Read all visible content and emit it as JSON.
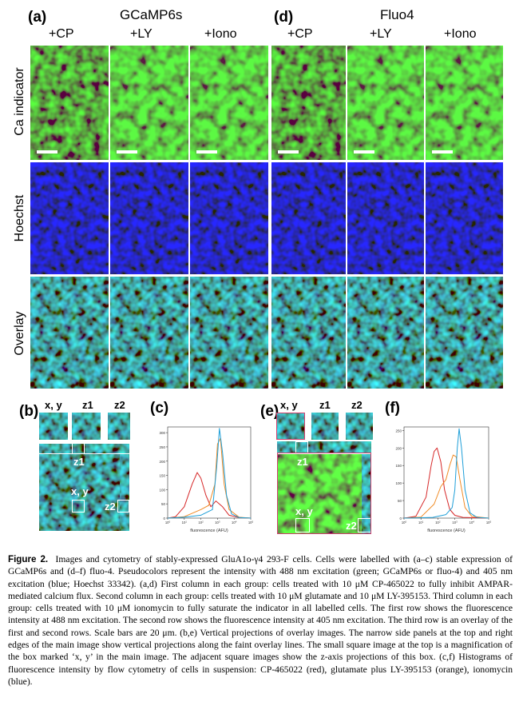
{
  "panels": {
    "a": {
      "letter": "(a)",
      "title": "GCaMP6s",
      "cols": [
        "+CP",
        "+LY",
        "+Iono"
      ]
    },
    "d": {
      "letter": "(d)",
      "title": "Fluo4",
      "cols": [
        "+CP",
        "+LY",
        "+Iono"
      ]
    },
    "rows": [
      "Ca indicator",
      "Hoechst",
      "Overlay"
    ],
    "b": {
      "letter": "(b)",
      "labels": [
        "x, y",
        "z1",
        "z2"
      ],
      "main_labels": [
        "z1",
        "x, y",
        "z2"
      ]
    },
    "c": {
      "letter": "(c)",
      "xlabel": "fluorescence (AFU)"
    },
    "e": {
      "letter": "(e)",
      "labels": [
        "x, y",
        "z1",
        "z2"
      ],
      "main_labels": [
        "z1",
        "x, y",
        "z2"
      ]
    },
    "f": {
      "letter": "(f)",
      "xlabel": "fluorescence (AFU)"
    }
  },
  "colors": {
    "red": "#d62728",
    "orange": "#f08a24",
    "blue": "#1f9fd8",
    "green": "#2fbf2f",
    "hoechst": "#1a2fd8"
  },
  "caption": {
    "heading": "Figure 2.",
    "text": "Images and cytometry of stably-expressed GluA1o-γ4 293-F cells. Cells were labelled with (a–c) stable expression of GCaMP6s and (d–f) fluo-4. Pseudocolors represent the intensity with 488 nm excitation (green; GCaMP6s or fluo-4) and 405 nm excitation (blue; Hoechst 33342). (a,d) First column in each group: cells treated with 10 μM CP-465022 to fully inhibit AMPAR-mediated calcium flux. Second column in each group: cells treated with 10 μM glutamate and 10 μM LY-395153. Third column in each group: cells treated with 10 μM ionomycin to fully saturate the indicator in all labelled cells. The first row shows the fluorescence intensity at 488 nm excitation. The second row shows the fluorescence intensity at 405 nm excitation. The third row is an overlay of the first and second rows. Scale bars are 20 μm. (b,e) Vertical projections of overlay images. The narrow side panels at the top and right edges of the main image show vertical projections along the faint overlay lines. The small square image at the top is a magnification of the box marked ‘x, y’ in the main image. The adjacent square images show the z-axis projections of this box. (c,f) Histograms of fluorescence intensity by flow cytometry of cells in suspension: CP-465022 (red), glutamate plus LY-395153 (orange), ionomycin (blue)."
  },
  "chart_data": [
    {
      "type": "line",
      "panel": "c",
      "xlabel": "fluorescence (AFU)",
      "xscale": "log",
      "xlim": [
        1,
        100000
      ],
      "ylim": [
        0,
        320
      ],
      "yticks": [
        0,
        50,
        100,
        150,
        200,
        250,
        300
      ],
      "series": [
        {
          "color": "red",
          "x": [
            1,
            3,
            10,
            30,
            60,
            100,
            200,
            400,
            800,
            2000,
            5000,
            20000,
            100000
          ],
          "y": [
            0,
            5,
            40,
            120,
            160,
            140,
            80,
            40,
            60,
            40,
            10,
            2,
            0
          ]
        },
        {
          "color": "orange",
          "x": [
            1,
            10,
            100,
            300,
            700,
            1000,
            1500,
            2500,
            5000,
            20000,
            100000
          ],
          "y": [
            0,
            5,
            30,
            45,
            120,
            260,
            280,
            120,
            30,
            3,
            0
          ]
        },
        {
          "color": "blue",
          "x": [
            1,
            10,
            100,
            500,
            900,
            1300,
            2000,
            3500,
            7000,
            20000,
            100000
          ],
          "y": [
            0,
            3,
            10,
            30,
            180,
            315,
            230,
            80,
            15,
            2,
            0
          ]
        }
      ]
    },
    {
      "type": "line",
      "panel": "f",
      "xlabel": "fluorescence (AFU)",
      "xscale": "log",
      "xlim": [
        1,
        100000
      ],
      "ylim": [
        0,
        260
      ],
      "yticks": [
        0,
        50,
        100,
        150,
        200,
        250
      ],
      "series": [
        {
          "color": "red",
          "x": [
            1,
            5,
            20,
            40,
            60,
            90,
            150,
            250,
            500,
            1000,
            3000,
            100000
          ],
          "y": [
            0,
            5,
            60,
            150,
            190,
            200,
            160,
            80,
            25,
            8,
            2,
            0
          ]
        },
        {
          "color": "orange",
          "x": [
            1,
            10,
            60,
            150,
            300,
            500,
            800,
            1200,
            2000,
            4000,
            10000,
            100000
          ],
          "y": [
            0,
            3,
            40,
            90,
            110,
            150,
            180,
            175,
            110,
            30,
            5,
            0
          ]
        },
        {
          "color": "blue",
          "x": [
            1,
            50,
            300,
            700,
            1000,
            1400,
            1800,
            2500,
            4000,
            8000,
            20000,
            100000
          ],
          "y": [
            0,
            2,
            10,
            30,
            80,
            200,
            255,
            200,
            80,
            15,
            2,
            0
          ]
        }
      ]
    }
  ]
}
